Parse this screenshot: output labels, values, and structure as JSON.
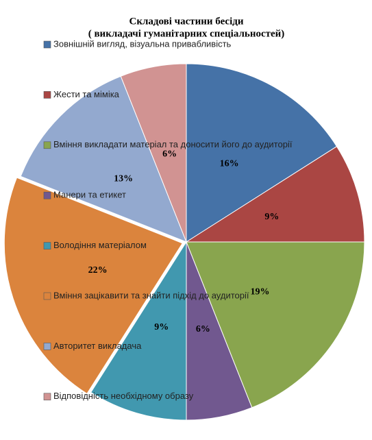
{
  "chart_data": {
    "type": "pie",
    "title": "Складові частини бесіди",
    "subtitle": "( викладачі гуманітарних спеціальностей)",
    "categories": [
      "Зовнішній вигляд, візуальна привабливість",
      "Жести та міміка",
      "Вміння викладати матеріал та доносити його до аудиторії",
      "Манери та етикет",
      "Володіння матеріалом",
      "Вміння зацікавити та знайти підхід до аудиторії",
      "Авторитет викладача",
      "Відповідність необхідному образу"
    ],
    "values": [
      16,
      9,
      19,
      6,
      9,
      22,
      13,
      6
    ],
    "value_labels": [
      "16%",
      "9%",
      "19%",
      "6%",
      "9%",
      "22%",
      "13%",
      "6%"
    ],
    "colors": [
      "#4572a7",
      "#aa4643",
      "#89a54e",
      "#71588f",
      "#4198af",
      "#db843d",
      "#93a9cf",
      "#d19392"
    ],
    "legend": "left"
  }
}
